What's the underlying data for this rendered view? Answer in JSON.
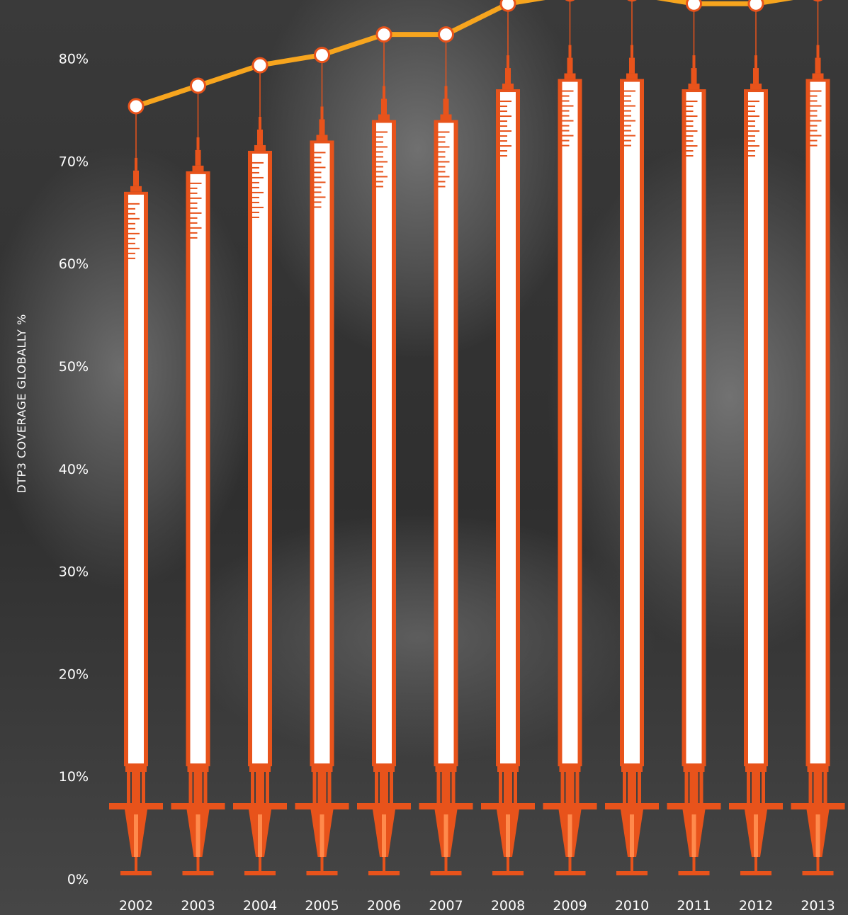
{
  "chart_data": {
    "type": "bar",
    "ylabel": "DTP3 COVERAGE GLOBALLY %",
    "xlabel": "",
    "ylim": [
      0,
      80
    ],
    "ytick_labels": [
      "0%",
      "10%",
      "20%",
      "30%",
      "40%",
      "50%",
      "60%",
      "70%",
      "80%"
    ],
    "categories": [
      "2002",
      "2003",
      "2004",
      "2005",
      "2006",
      "2007",
      "2008",
      "2009",
      "2010",
      "2011",
      "2012",
      "2013"
    ],
    "values": [
      67,
      69,
      71,
      72,
      74,
      74,
      77,
      78,
      78,
      77,
      77,
      78
    ],
    "grid": false,
    "legend": "none",
    "colors": {
      "syringe": "#e8531b",
      "line": "#f7a51e",
      "text": "#ffffff"
    }
  }
}
